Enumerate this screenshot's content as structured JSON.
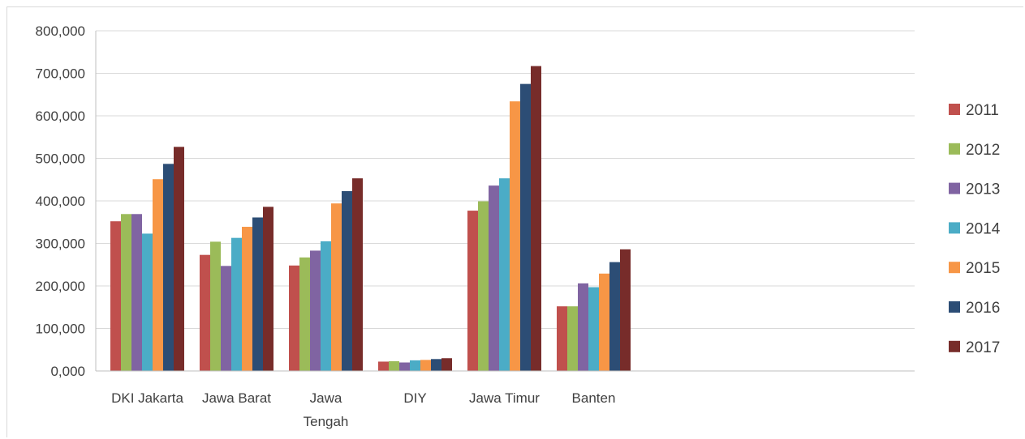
{
  "chart_data": {
    "type": "bar",
    "title": "",
    "xlabel": "",
    "ylabel": "",
    "ylim": [
      0,
      800000
    ],
    "y_ticks": [
      "0,000",
      "100,000",
      "200,000",
      "300,000",
      "400,000",
      "500,000",
      "600,000",
      "700,000",
      "800,000"
    ],
    "y_tick_values": [
      0,
      100000,
      200000,
      300000,
      400000,
      500000,
      600000,
      700000,
      800000
    ],
    "grid": true,
    "legend_position": "right",
    "categories": [
      "DKI Jakarta",
      "Jawa Barat",
      "Jawa Tengah",
      "DIY",
      "Jawa Timur",
      "Banten"
    ],
    "category_label_lines": [
      [
        "DKI Jakarta"
      ],
      [
        "Jawa Barat"
      ],
      [
        "Jawa",
        "Tengah"
      ],
      [
        "DIY"
      ],
      [
        "Jawa Timur"
      ],
      [
        "Banten"
      ]
    ],
    "series": [
      {
        "name": "2011",
        "color": "#c0504d",
        "values": [
          352000,
          273000,
          248000,
          22000,
          377000,
          152000
        ]
      },
      {
        "name": "2012",
        "color": "#9bbb59",
        "values": [
          369000,
          304000,
          267000,
          23000,
          399000,
          152000
        ]
      },
      {
        "name": "2013",
        "color": "#8064a2",
        "values": [
          369000,
          247000,
          283000,
          20000,
          436000,
          206000
        ]
      },
      {
        "name": "2014",
        "color": "#4bacc6",
        "values": [
          323000,
          313000,
          305000,
          25000,
          453000,
          197000
        ]
      },
      {
        "name": "2015",
        "color": "#f79646",
        "values": [
          451000,
          339000,
          394000,
          26000,
          634000,
          229000
        ]
      },
      {
        "name": "2016",
        "color": "#2c4d75",
        "values": [
          487000,
          361000,
          423000,
          28000,
          675000,
          256000
        ]
      },
      {
        "name": "2017",
        "color": "#772c2a",
        "values": [
          527000,
          386000,
          453000,
          30000,
          717000,
          286000
        ]
      }
    ]
  }
}
